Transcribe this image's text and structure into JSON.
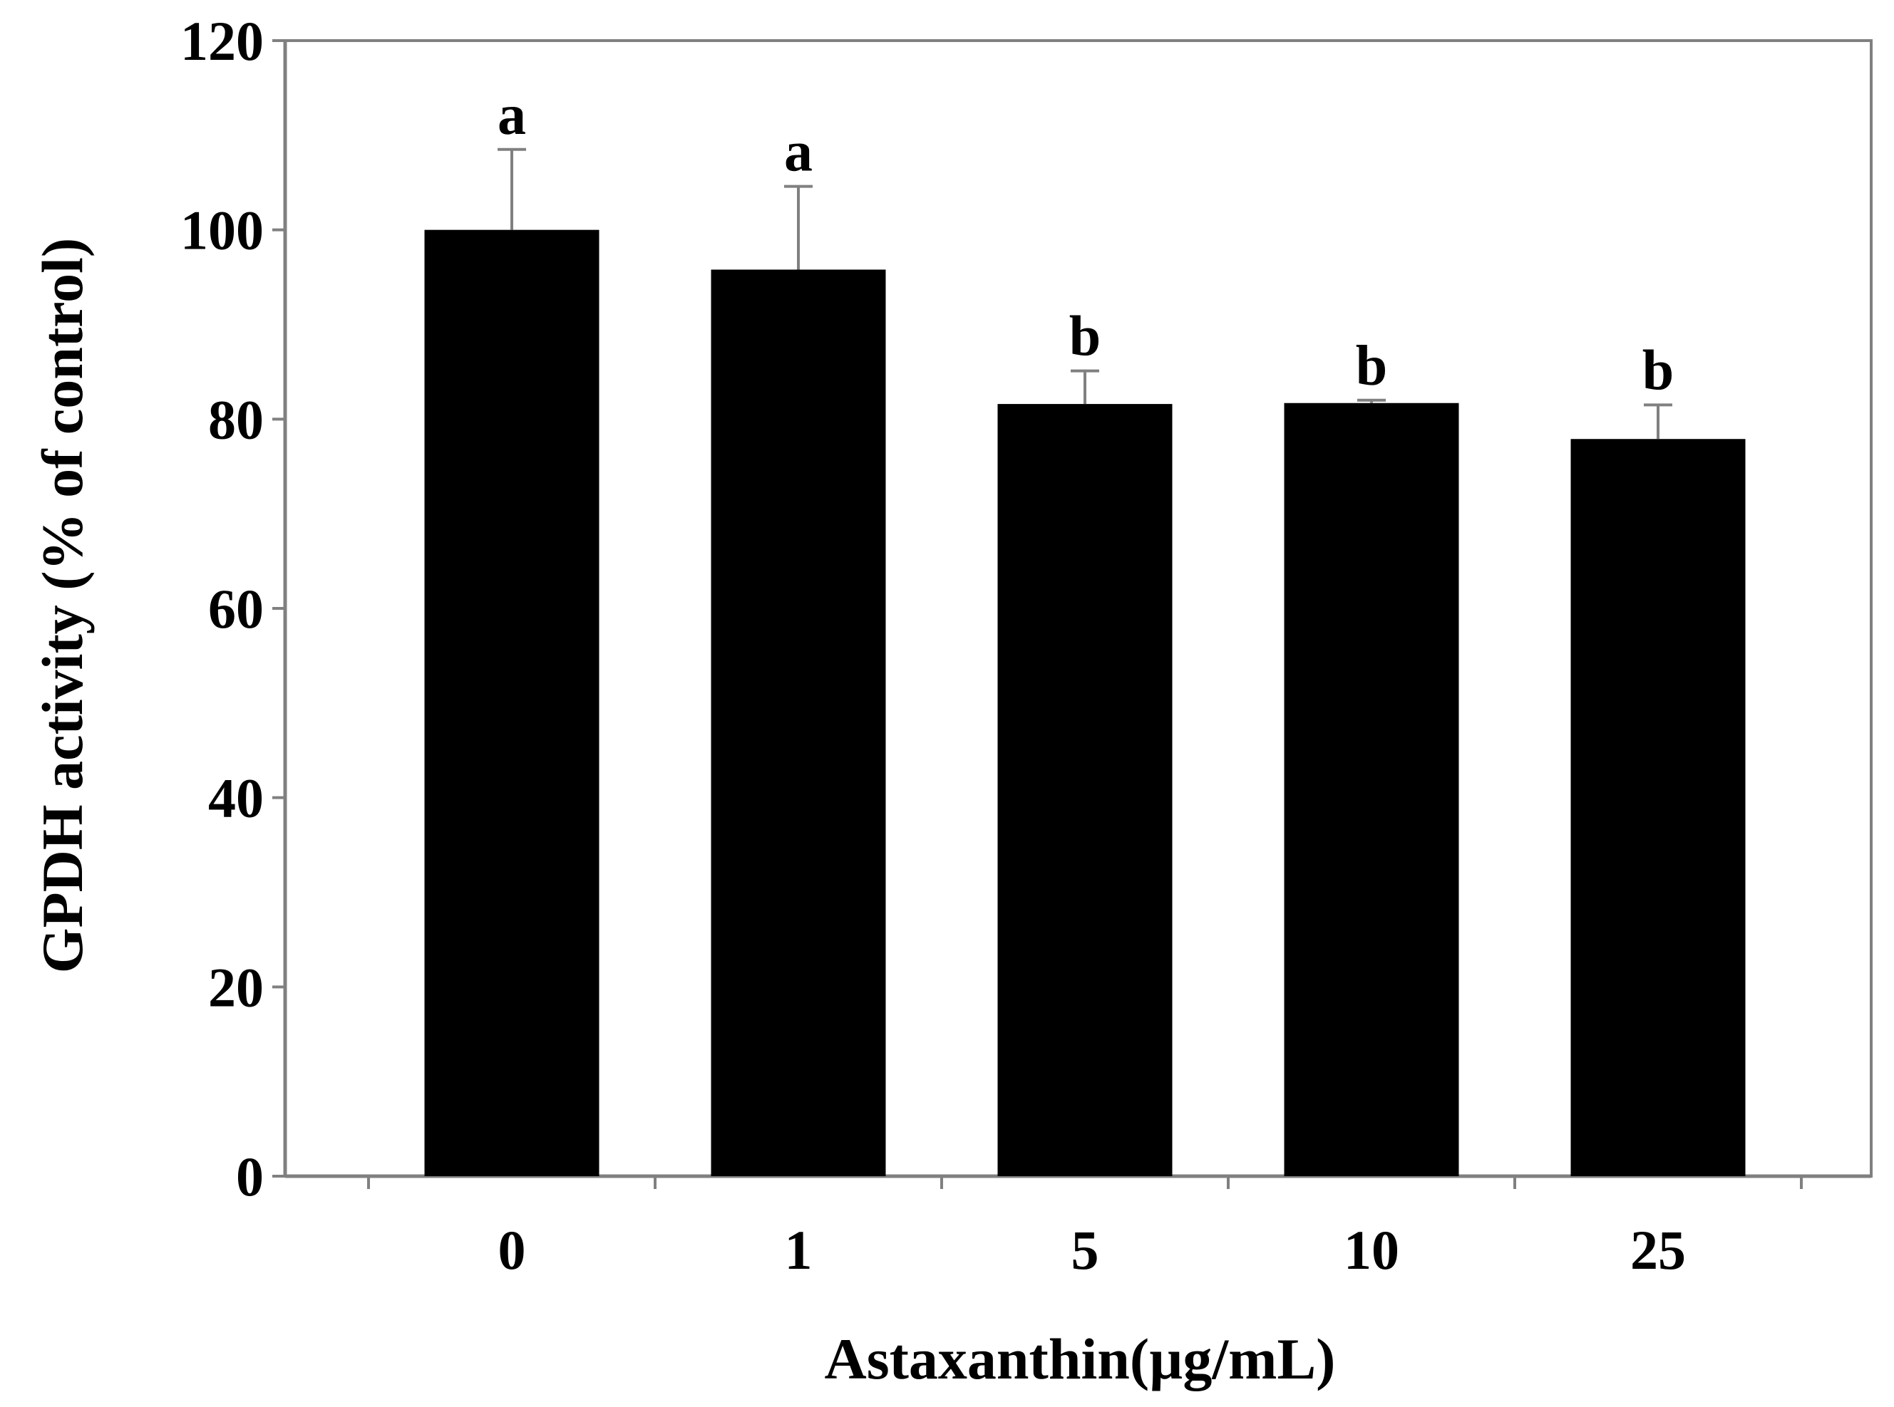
{
  "chart_data": {
    "type": "bar",
    "title": "",
    "xlabel": "Astaxanthin(µg/mL)",
    "ylabel": "GPDH activity (% of control)",
    "categories": [
      "0",
      "1",
      "5",
      "10",
      "25"
    ],
    "values": [
      100,
      95.8,
      81.6,
      81.7,
      77.9
    ],
    "error_plus": [
      8.5,
      8.8,
      3.5,
      0.3,
      3.6
    ],
    "significance_labels": [
      "a",
      "a",
      "b",
      "b",
      "b"
    ],
    "ylim": [
      0,
      120
    ],
    "yticks": [
      0,
      20,
      40,
      60,
      80,
      100,
      120
    ],
    "grid": false,
    "legend": "none",
    "bar_color": "#000000",
    "axis_color": "#808080"
  }
}
